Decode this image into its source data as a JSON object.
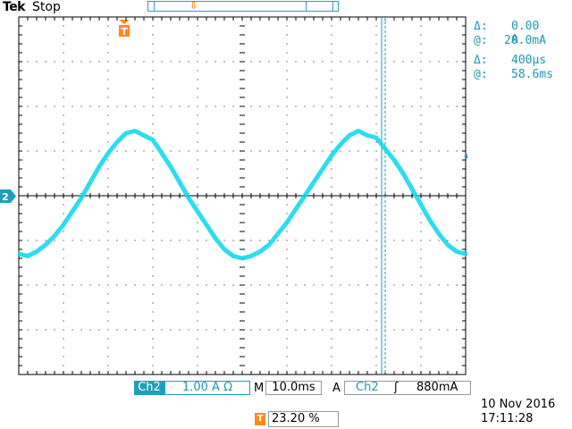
{
  "header": {
    "brand": "Tek",
    "run_state": "Stop"
  },
  "markers": {
    "trigger_marker": "T",
    "channel_marker": "2"
  },
  "cursor_readouts": [
    {
      "symbol": "Δ:",
      "value": "0.00 A"
    },
    {
      "symbol": "@:",
      "value": "20.0mA"
    },
    {
      "symbol": "Δ:",
      "value": "400µs"
    },
    {
      "symbol": "@:",
      "value": "58.6ms"
    }
  ],
  "footer": {
    "channel": "Ch2",
    "scale": "1.00 A Ω",
    "m_label": "M",
    "timebase": "10.0ms",
    "trigger_label": "A",
    "trigger_channel": "Ch2",
    "trigger_slope": "ʃ",
    "trigger_level": "880mA",
    "trigger_position_icon": "T",
    "trigger_position": "23.20 %",
    "date": "10 Nov 2016",
    "time": "17:11:28"
  },
  "colors": {
    "trace": "#16d8ee",
    "cursor": "#1f98b3",
    "trigger": "#ff8a1a",
    "grid": "#000000"
  },
  "chart_data": {
    "type": "line",
    "xlabel": "",
    "ylabel": "",
    "x_divisions": 10,
    "y_divisions": 8,
    "volts_per_div_label": "1.00 A",
    "time_per_div_label": "10.0ms",
    "series": [
      {
        "x_div": [
          0,
          0.2,
          0.4,
          0.6,
          0.8,
          1.0,
          1.2,
          1.4,
          1.6,
          1.8,
          2.0,
          2.2,
          2.4,
          2.6,
          2.8,
          3.0,
          3.2,
          3.4,
          3.6,
          3.8,
          4.0,
          4.2,
          4.4,
          4.6,
          4.8,
          5.0,
          5.2,
          5.4,
          5.6,
          5.8,
          6.0,
          6.2,
          6.4,
          6.6,
          6.8,
          7.0,
          7.2,
          7.4,
          7.6,
          7.8,
          8.0,
          8.2,
          8.4,
          8.6,
          8.8,
          9.0,
          9.2,
          9.4,
          9.6,
          9.8,
          10.0
        ],
        "y_div": [
          -1.3,
          -1.35,
          -1.25,
          -1.1,
          -0.9,
          -0.65,
          -0.35,
          -0.05,
          0.3,
          0.65,
          0.95,
          1.2,
          1.4,
          1.45,
          1.35,
          1.25,
          0.95,
          0.65,
          0.3,
          -0.05,
          -0.35,
          -0.65,
          -0.95,
          -1.2,
          -1.35,
          -1.4,
          -1.35,
          -1.25,
          -1.1,
          -0.85,
          -0.6,
          -0.3,
          0.0,
          0.3,
          0.6,
          0.9,
          1.15,
          1.35,
          1.45,
          1.35,
          1.3,
          1.05,
          0.8,
          0.5,
          0.15,
          -0.2,
          -0.55,
          -0.85,
          -1.1,
          -1.25,
          -1.3
        ]
      }
    ]
  }
}
